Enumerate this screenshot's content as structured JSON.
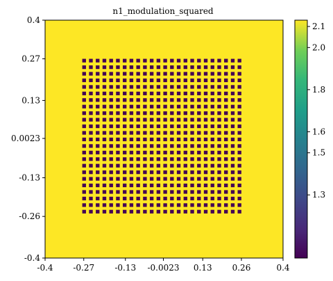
{
  "chart_data": {
    "type": "heatmap",
    "title": "n1_modulation_squared",
    "xlabel": "",
    "ylabel": "",
    "xlim": [
      -0.4,
      0.4
    ],
    "ylim": [
      -0.4,
      0.4
    ],
    "x_ticks": [
      -0.4,
      -0.27,
      -0.13,
      -0.0023,
      0.13,
      0.26,
      0.4
    ],
    "x_tick_labels": [
      "-0.4",
      "-0.27",
      "-0.13",
      "-0.0023",
      "0.13",
      "0.26",
      "0.4"
    ],
    "y_ticks": [
      0.4,
      0.27,
      0.13,
      0.0023,
      -0.13,
      -0.26,
      -0.4
    ],
    "y_tick_labels": [
      "0.4",
      "0.27",
      "0.13",
      "0.0023",
      "-0.13",
      "-0.26",
      "-0.4"
    ],
    "background_value": 2.13,
    "hole_value": 1.0,
    "grid_region": {
      "x": [
        -0.275,
        0.27
      ],
      "y": [
        -0.26,
        0.27
      ]
    },
    "grid": {
      "columns": 24,
      "rows": 24,
      "hole_fraction_x": 0.55,
      "hole_fraction_y": 0.55
    },
    "colorbar": {
      "range": [
        1.0,
        2.13
      ],
      "ticks": [
        2.1,
        2.0,
        1.8,
        1.6,
        1.5,
        1.3
      ],
      "tick_labels": [
        "2.1",
        "2.0",
        "1.8",
        "1.6",
        "1.5",
        "1.3"
      ],
      "colormap": "viridis"
    },
    "colors": {
      "high": "#fde725",
      "low": "#440154"
    }
  }
}
